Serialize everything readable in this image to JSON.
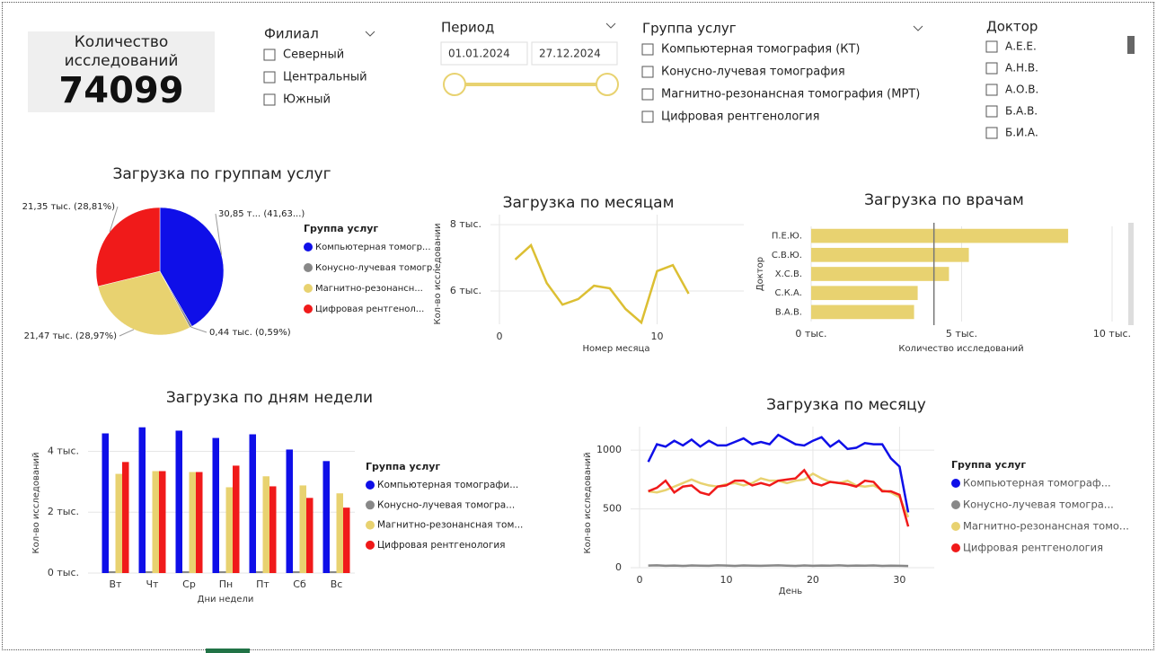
{
  "kpi_card": {
    "title": "Количество исследований",
    "value": 74099
  },
  "slicers": [
    {
      "title": "Филиал",
      "options": [
        "Северный",
        "Центральный",
        "Южный"
      ]
    },
    {
      "title": "Группа услуг",
      "options": [
        "Компьютерная томография (КТ)",
        "Конусно-лучевая томография",
        "Магнитно-резонансная томография (МРТ)",
        "Цифровая рентгенология"
      ]
    },
    {
      "title": "Доктор",
      "options": [
        "А.Е.Е.",
        "А.Н.В.",
        "А.О.В.",
        "Б.А.В.",
        "Б.И.А."
      ]
    }
  ],
  "period_slicer": {
    "title": "Период",
    "start": "01.01.2024",
    "end": "27.12.2024"
  },
  "chart_data": [
    {
      "type": "pie",
      "title": "Загрузка по группам услуг",
      "legend_title": "Группа услуг",
      "categories": [
        "Компьютерная томогр...",
        "Конусно-лучевая томогр...",
        "Магнитно-резонансн...",
        "Цифровая рентгенол..."
      ],
      "values": [
        30.85,
        0.44,
        21.47,
        21.35
      ],
      "value_labels": [
        "30,85 т... (41,63...)",
        "0,44 тыс. (0,59%)",
        "21,47 тыс. (28,97%)",
        "21,35 тыс. (28,81%)"
      ],
      "colors": [
        "#0f0fe8",
        "#888888",
        "#e8d270",
        "#f01a1a"
      ]
    },
    {
      "type": "line",
      "title": "Загрузка по месяцам",
      "x_label": "Номер месяца",
      "y_label": "Кол-во исследовании",
      "x": [
        1,
        2,
        3,
        4,
        5,
        6,
        7,
        8,
        9,
        10,
        11,
        12
      ],
      "values": [
        6.95,
        7.38,
        6.24,
        5.59,
        5.76,
        6.16,
        6.08,
        5.46,
        5.05,
        6.6,
        6.78,
        5.92
      ],
      "color": "#dcbf33",
      "xlim": [
        0,
        15.5
      ],
      "xticks": [
        0,
        10
      ],
      "ylim": [
        5,
        8.3
      ],
      "yticks": [
        {
          "value": 6,
          "label": "6 тыс."
        },
        {
          "value": 8,
          "label": "8 тыс."
        }
      ],
      "grid": true
    },
    {
      "type": "bar",
      "orientation": "horizontal",
      "title": "Загрузка по врачам",
      "x_label": "Количество исследований",
      "y_label": "Доктор",
      "categories": [
        "П.Е.Ю.",
        "С.В.Ю.",
        "Х.С.В.",
        "С.К.А.",
        "В.А.В."
      ],
      "values": [
        8.54,
        5.24,
        4.58,
        3.54,
        3.42
      ],
      "color": "#e8d270",
      "reference_line": 4.08,
      "xlim": [
        0,
        10
      ],
      "xticks": [
        {
          "value": 0,
          "label": "0 тыс."
        },
        {
          "value": 5,
          "label": "5 тыс."
        },
        {
          "value": 10,
          "label": "10 тыс."
        }
      ],
      "grid": true
    },
    {
      "type": "bar",
      "orientation": "vertical",
      "title": "Загрузка по дням недели",
      "x_label": "Дни недели",
      "y_label": "Кол-во исследований",
      "legend_title": "Группа услуг",
      "categories": [
        "Вт",
        "Чт",
        "Ср",
        "Пн",
        "Пт",
        "Сб",
        "Вс"
      ],
      "series": [
        {
          "name": "Компьютерная томографи...",
          "color": "#0f0fe8",
          "values": [
            4.59,
            4.79,
            4.68,
            4.44,
            4.56,
            4.06,
            3.68
          ]
        },
        {
          "name": "Конусно-лучевая томогра...",
          "color": "#888888",
          "values": [
            0.06,
            0.06,
            0.06,
            0.06,
            0.06,
            0.06,
            0.06
          ]
        },
        {
          "name": "Магнитно-резонансная том...",
          "color": "#e8d270",
          "values": [
            3.26,
            3.35,
            3.32,
            2.82,
            3.18,
            2.88,
            2.62
          ]
        },
        {
          "name": "Цифровая рентгенология",
          "color": "#f01a1a",
          "values": [
            3.65,
            3.35,
            3.32,
            3.53,
            2.85,
            2.47,
            2.15
          ]
        }
      ],
      "ylim": [
        0,
        4.9
      ],
      "yticks": [
        {
          "value": 0,
          "label": "0 тыс."
        },
        {
          "value": 2,
          "label": "2 тыс."
        },
        {
          "value": 4,
          "label": "4 тыс."
        }
      ],
      "grid": true
    },
    {
      "type": "line",
      "title": "Загрузка по месяцу",
      "x_label": "День",
      "y_label": "Кол-во исследований",
      "legend_title": "Группа услуг",
      "x": [
        1,
        2,
        3,
        4,
        5,
        6,
        7,
        8,
        9,
        10,
        11,
        12,
        13,
        14,
        15,
        16,
        17,
        18,
        19,
        20,
        21,
        22,
        23,
        24,
        25,
        26,
        27,
        28,
        29,
        30,
        31
      ],
      "series": [
        {
          "name": "Компьютерная томограф...",
          "color": "#0f0fe8",
          "values": [
            900,
            1050,
            1030,
            1080,
            1040,
            1090,
            1030,
            1080,
            1040,
            1040,
            1070,
            1100,
            1050,
            1070,
            1050,
            1130,
            1090,
            1050,
            1040,
            1080,
            1110,
            1030,
            1080,
            1010,
            1020,
            1060,
            1050,
            1050,
            930,
            860,
            470
          ]
        },
        {
          "name": "Конусно-лучевая томогра...",
          "color": "#888888",
          "values": [
            18,
            20,
            16,
            18,
            15,
            19,
            17,
            16,
            20,
            18,
            15,
            19,
            17,
            16,
            18,
            20,
            17,
            15,
            19,
            16,
            18,
            17,
            20,
            16,
            18,
            17,
            19,
            15,
            17,
            16,
            14
          ]
        },
        {
          "name": "Магнитно-резонансная томо...",
          "color": "#e8d270",
          "values": [
            650,
            640,
            660,
            690,
            720,
            750,
            720,
            700,
            690,
            710,
            720,
            700,
            720,
            760,
            740,
            740,
            720,
            740,
            750,
            800,
            760,
            730,
            720,
            740,
            700,
            690,
            700,
            660,
            640,
            600,
            430
          ]
        },
        {
          "name": "Цифровая рентгенология",
          "color": "#f01a1a",
          "values": [
            650,
            680,
            740,
            640,
            690,
            700,
            640,
            620,
            690,
            700,
            740,
            740,
            700,
            720,
            700,
            740,
            750,
            760,
            830,
            720,
            700,
            730,
            720,
            710,
            690,
            740,
            730,
            650,
            650,
            620,
            350
          ]
        }
      ],
      "xlim": [
        0,
        34
      ],
      "xticks": [
        0,
        10,
        20,
        30
      ],
      "ylim": [
        0,
        1200
      ],
      "yticks": [
        0,
        500,
        1000
      ],
      "grid": true
    }
  ]
}
